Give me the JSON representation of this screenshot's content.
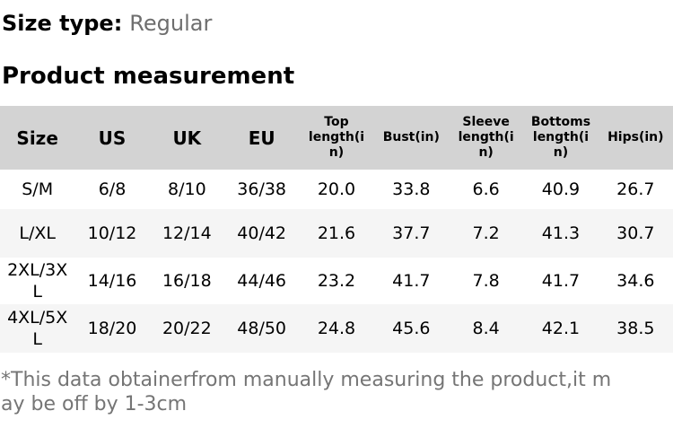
{
  "page": {
    "size_type": {
      "label": "Size type:",
      "value": "Regular"
    },
    "section_title": "Product measurement",
    "footnote": "*This data obtainerfrom manually measuring the product,it may be off by 1-3cm"
  },
  "colors": {
    "header_bg": "#d3d3d3",
    "zebra_row_bg": "#f5f5f5",
    "muted_text": "#757575",
    "body_text": "#000000",
    "page_bg": "#ffffff"
  },
  "chart_data": {
    "type": "table",
    "title": "Product measurement",
    "columns": [
      "Size",
      "US",
      "UK",
      "EU",
      "Top length(in)",
      "Bust(in)",
      "Sleeve length(in)",
      "Bottoms length(in)",
      "Hips(in)"
    ],
    "rows": [
      [
        "S/M",
        "6/8",
        "8/10",
        "36/38",
        "20.0",
        "33.8",
        "6.6",
        "40.9",
        "26.7"
      ],
      [
        "L/XL",
        "10/12",
        "12/14",
        "40/42",
        "21.6",
        "37.7",
        "7.2",
        "41.3",
        "30.7"
      ],
      [
        "2XL/3XL",
        "14/16",
        "16/18",
        "44/46",
        "23.2",
        "41.7",
        "7.8",
        "41.7",
        "34.6"
      ],
      [
        "4XL/5XL",
        "18/20",
        "20/22",
        "48/50",
        "24.8",
        "45.6",
        "8.4",
        "42.1",
        "38.5"
      ]
    ]
  }
}
